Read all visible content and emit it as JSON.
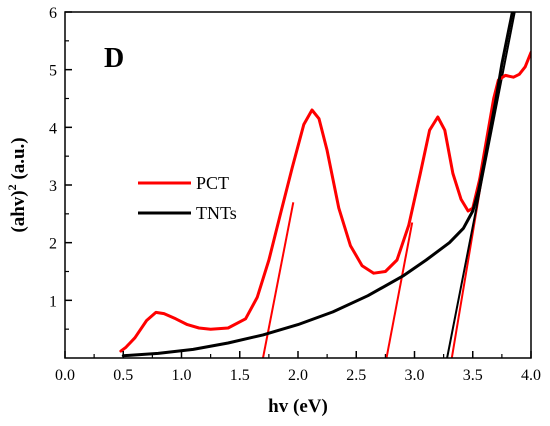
{
  "chart_data": {
    "type": "line",
    "panel_label": "D",
    "xlabel": "hv (eV)",
    "ylabel_main": "(ahv)",
    "ylabel_sup": "2",
    "ylabel_unit": " (a.u.)",
    "xlim": [
      0.0,
      4.0
    ],
    "ylim": [
      0,
      6
    ],
    "xticks": [
      0.0,
      0.5,
      1.0,
      1.5,
      2.0,
      2.5,
      3.0,
      3.5,
      4.0
    ],
    "xtick_labels": [
      "0.0",
      "0.5",
      "1.0",
      "1.5",
      "2.0",
      "2.5",
      "3.0",
      "3.5",
      "4.0"
    ],
    "yticks": [
      1,
      2,
      3,
      4,
      5,
      6
    ],
    "ytick_labels": [
      "1",
      "2",
      "3",
      "4",
      "5",
      "6"
    ],
    "grid": false,
    "legend_position": "center-left",
    "series": [
      {
        "name": "PCT",
        "color": "#ff0000",
        "points": [
          [
            0.48,
            0.12
          ],
          [
            0.52,
            0.18
          ],
          [
            0.6,
            0.35
          ],
          [
            0.7,
            0.65
          ],
          [
            0.78,
            0.79
          ],
          [
            0.85,
            0.77
          ],
          [
            0.95,
            0.68
          ],
          [
            1.05,
            0.58
          ],
          [
            1.15,
            0.52
          ],
          [
            1.25,
            0.5
          ],
          [
            1.4,
            0.52
          ],
          [
            1.55,
            0.68
          ],
          [
            1.65,
            1.05
          ],
          [
            1.75,
            1.7
          ],
          [
            1.85,
            2.5
          ],
          [
            1.95,
            3.3
          ],
          [
            2.05,
            4.05
          ],
          [
            2.12,
            4.3
          ],
          [
            2.18,
            4.15
          ],
          [
            2.25,
            3.6
          ],
          [
            2.35,
            2.6
          ],
          [
            2.45,
            1.95
          ],
          [
            2.55,
            1.6
          ],
          [
            2.65,
            1.47
          ],
          [
            2.75,
            1.5
          ],
          [
            2.85,
            1.7
          ],
          [
            2.95,
            2.3
          ],
          [
            3.05,
            3.2
          ],
          [
            3.13,
            3.95
          ],
          [
            3.2,
            4.18
          ],
          [
            3.26,
            3.95
          ],
          [
            3.33,
            3.2
          ],
          [
            3.4,
            2.75
          ],
          [
            3.46,
            2.55
          ],
          [
            3.5,
            2.6
          ],
          [
            3.56,
            3.1
          ],
          [
            3.62,
            3.8
          ],
          [
            3.68,
            4.5
          ],
          [
            3.72,
            4.82
          ],
          [
            3.78,
            4.9
          ],
          [
            3.85,
            4.87
          ],
          [
            3.9,
            4.92
          ],
          [
            3.95,
            5.05
          ],
          [
            4.0,
            5.3
          ]
        ]
      },
      {
        "name": "TNTs",
        "color": "#000000",
        "points": [
          [
            0.5,
            0.04
          ],
          [
            0.8,
            0.08
          ],
          [
            1.1,
            0.15
          ],
          [
            1.4,
            0.26
          ],
          [
            1.7,
            0.4
          ],
          [
            2.0,
            0.58
          ],
          [
            2.3,
            0.8
          ],
          [
            2.6,
            1.08
          ],
          [
            2.9,
            1.42
          ],
          [
            3.1,
            1.7
          ],
          [
            3.3,
            2.0
          ],
          [
            3.42,
            2.25
          ],
          [
            3.5,
            2.55
          ],
          [
            3.55,
            2.9
          ],
          [
            3.6,
            3.4
          ],
          [
            3.65,
            3.95
          ],
          [
            3.7,
            4.5
          ],
          [
            3.75,
            5.1
          ],
          [
            3.8,
            5.6
          ],
          [
            3.84,
            6.0
          ]
        ]
      }
    ],
    "tangent_lines": [
      {
        "color": "#ff0000",
        "points": [
          [
            1.7,
            0.0
          ],
          [
            1.96,
            2.7
          ]
        ]
      },
      {
        "color": "#ff0000",
        "points": [
          [
            2.76,
            0.0
          ],
          [
            2.98,
            2.35
          ]
        ]
      },
      {
        "color": "#ff0000",
        "points": [
          [
            3.32,
            0.0
          ],
          [
            3.66,
            4.1
          ]
        ]
      },
      {
        "color": "#000000",
        "points": [
          [
            3.28,
            0.0
          ],
          [
            3.86,
            6.0
          ]
        ]
      }
    ]
  }
}
